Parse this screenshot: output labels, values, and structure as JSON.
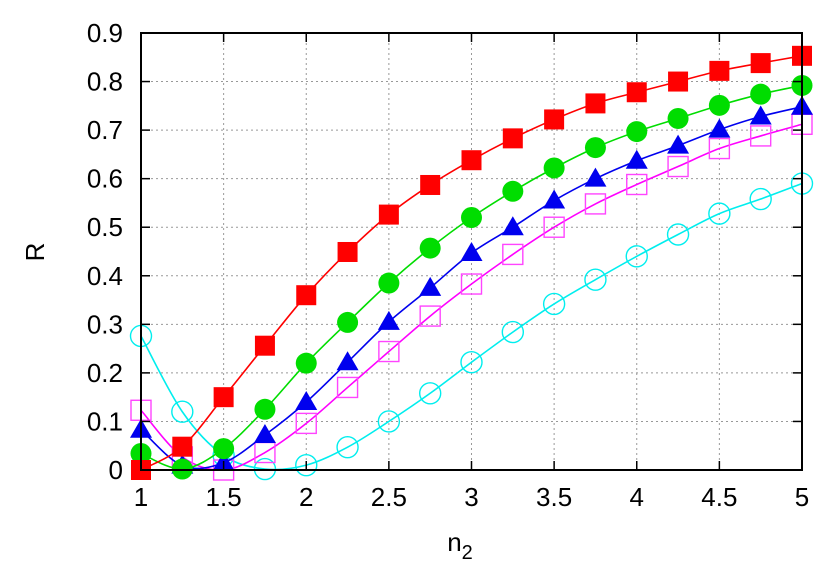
{
  "chart_data": {
    "type": "line",
    "title": "",
    "xlabel": "n2",
    "xlabel_main": "n",
    "xlabel_sub": "2",
    "ylabel": "R",
    "xlim": [
      1,
      5
    ],
    "ylim": [
      0,
      0.9
    ],
    "grid": true,
    "legend": "none",
    "x_ticks": [
      "1",
      "1.5",
      "2",
      "2.5",
      "3",
      "3.5",
      "4",
      "4.5",
      "5"
    ],
    "y_ticks": [
      "0",
      "0.1",
      "0.2",
      "0.3",
      "0.4",
      "0.5",
      "0.6",
      "0.7",
      "0.8",
      "0.9"
    ],
    "x": [
      1,
      1.25,
      1.5,
      1.75,
      2,
      2.25,
      2.5,
      2.75,
      3,
      3.25,
      3.5,
      3.75,
      4,
      4.25,
      4.5,
      4.75,
      5
    ],
    "series": [
      {
        "name": "red-filled-squares",
        "color": "#ff0000",
        "marker": "filled-square",
        "values": [
          0.0,
          0.048,
          0.15,
          0.256,
          0.36,
          0.449,
          0.526,
          0.587,
          0.638,
          0.683,
          0.722,
          0.755,
          0.778,
          0.8,
          0.822,
          0.838,
          0.853
        ]
      },
      {
        "name": "green-filled-circles",
        "color": "#00dd00",
        "marker": "filled-circle",
        "values": [
          0.034,
          0.002,
          0.044,
          0.125,
          0.22,
          0.304,
          0.385,
          0.457,
          0.52,
          0.574,
          0.622,
          0.664,
          0.697,
          0.724,
          0.751,
          0.774,
          0.792
        ]
      },
      {
        "name": "blue-filled-triangles",
        "color": "#0000ee",
        "marker": "filled-triangle",
        "values": [
          0.083,
          0.009,
          0.015,
          0.072,
          0.14,
          0.222,
          0.305,
          0.375,
          0.447,
          0.5,
          0.555,
          0.6,
          0.637,
          0.668,
          0.701,
          0.728,
          0.748
        ]
      },
      {
        "name": "magenta-open-squares",
        "color": "#ff44ff",
        "line_color": "#ff00ff",
        "marker": "open-square",
        "values": [
          0.123,
          0.027,
          0.0,
          0.036,
          0.096,
          0.17,
          0.244,
          0.317,
          0.383,
          0.444,
          0.5,
          0.548,
          0.588,
          0.625,
          0.662,
          0.688,
          0.712
        ]
      },
      {
        "name": "cyan-open-circles",
        "color": "#00eeee",
        "marker": "open-circle",
        "values": [
          0.276,
          0.12,
          0.03,
          0.002,
          0.01,
          0.047,
          0.1,
          0.158,
          0.222,
          0.284,
          0.342,
          0.392,
          0.44,
          0.485,
          0.528,
          0.558,
          0.59
        ]
      }
    ]
  }
}
